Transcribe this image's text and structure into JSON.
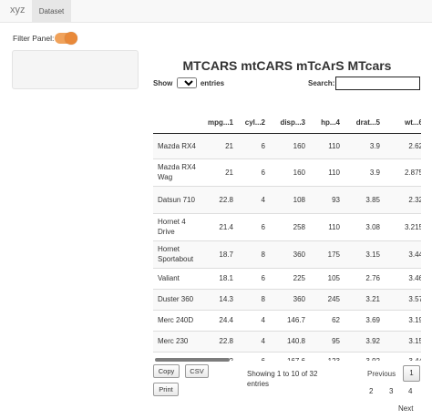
{
  "navbar": {
    "brand": "xyz",
    "tabs": [
      {
        "label": "Dataset"
      }
    ]
  },
  "filter": {
    "label": "Filter Panel:",
    "enabled": true,
    "accent": "#e8893a"
  },
  "title": "MTCARS mtCARS mTcArS MTcars",
  "length": {
    "prefix": "Show",
    "value": "10",
    "suffix": "entries"
  },
  "search": {
    "label": "Search:",
    "value": ""
  },
  "table": {
    "columns": [
      "",
      "mpg...1",
      "cyl...2",
      "disp...3",
      "hp...4",
      "drat...5",
      "wt...6"
    ],
    "rows": [
      [
        "Mazda RX4",
        "21",
        "6",
        "160",
        "110",
        "3.9",
        "2.62"
      ],
      [
        "Mazda RX4 Wag",
        "21",
        "6",
        "160",
        "110",
        "3.9",
        "2.875"
      ],
      [
        "Datsun 710",
        "22.8",
        "4",
        "108",
        "93",
        "3.85",
        "2.32"
      ],
      [
        "Hornet 4 Drive",
        "21.4",
        "6",
        "258",
        "110",
        "3.08",
        "3.215"
      ],
      [
        "Hornet Sportabout",
        "18.7",
        "8",
        "360",
        "175",
        "3.15",
        "3.44"
      ],
      [
        "Valiant",
        "18.1",
        "6",
        "225",
        "105",
        "2.76",
        "3.46"
      ],
      [
        "Duster 360",
        "14.3",
        "8",
        "360",
        "245",
        "3.21",
        "3.57"
      ],
      [
        "Merc 240D",
        "24.4",
        "4",
        "146.7",
        "62",
        "3.69",
        "3.19"
      ],
      [
        "Merc 230",
        "22.8",
        "4",
        "140.8",
        "95",
        "3.92",
        "3.15"
      ],
      [
        "Merc 280",
        "19.2",
        "6",
        "167.6",
        "123",
        "3.92",
        "3.44"
      ]
    ]
  },
  "buttons": {
    "copy": "Copy",
    "csv": "CSV",
    "print": "Print"
  },
  "info": "Showing 1 to 10 of 32 entries",
  "pagination": {
    "previous": "Previous",
    "current": "1",
    "pages": [
      "2",
      "3",
      "4"
    ],
    "next": "Next"
  }
}
